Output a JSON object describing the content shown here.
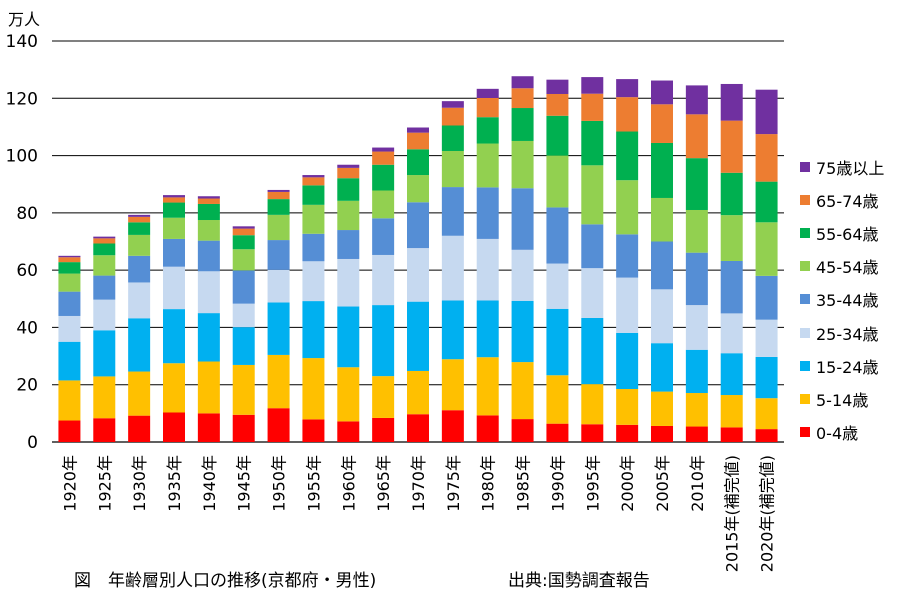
{
  "chart_data": {
    "type": "bar",
    "stacked": true,
    "ylabel": "万人",
    "ylim": [
      0,
      140
    ],
    "yticks": [
      0,
      20,
      40,
      60,
      80,
      100,
      120,
      140
    ],
    "grid": true,
    "legend_position": "right",
    "categories": [
      "1920年",
      "1925年",
      "1930年",
      "1935年",
      "1940年",
      "1945年",
      "1950年",
      "1955年",
      "1960年",
      "1965年",
      "1970年",
      "1975年",
      "1980年",
      "1985年",
      "1990年",
      "1995年",
      "2000年",
      "2005年",
      "2010年",
      "2015年(補完値)",
      "2020年(補完値)"
    ],
    "series": [
      {
        "name": "0-4歳",
        "color": "#ff0000",
        "values": [
          7.5,
          8.3,
          9.2,
          10.3,
          10.0,
          9.5,
          11.8,
          7.9,
          7.2,
          8.4,
          9.7,
          11.1,
          9.3,
          8.0,
          6.4,
          6.2,
          6.0,
          5.6,
          5.4,
          5.1,
          4.5
        ]
      },
      {
        "name": "5-14歳",
        "color": "#ffc000",
        "values": [
          14.0,
          14.6,
          15.4,
          17.2,
          18.1,
          17.4,
          18.6,
          21.4,
          18.9,
          14.6,
          15.1,
          17.8,
          20.3,
          19.9,
          16.9,
          14.0,
          12.5,
          12.0,
          11.7,
          11.3,
          10.8
        ]
      },
      {
        "name": "15-24歳",
        "color": "#00b0f0",
        "values": [
          13.5,
          16.1,
          18.6,
          18.9,
          16.9,
          13.2,
          18.3,
          19.9,
          21.2,
          24.8,
          24.2,
          20.5,
          19.8,
          21.4,
          23.2,
          23.1,
          19.6,
          16.9,
          15.1,
          14.6,
          14.4
        ]
      },
      {
        "name": "25-34歳",
        "color": "#c6d9f0",
        "values": [
          9.0,
          10.7,
          12.5,
          14.8,
          14.6,
          8.2,
          11.4,
          13.9,
          16.6,
          17.5,
          18.7,
          22.6,
          21.5,
          17.8,
          15.8,
          17.4,
          19.3,
          18.8,
          15.6,
          13.9,
          13.0
        ]
      },
      {
        "name": "35-44歳",
        "color": "#558ed5",
        "values": [
          8.5,
          8.4,
          9.3,
          9.7,
          10.7,
          11.6,
          10.4,
          9.6,
          10.1,
          12.8,
          16.0,
          17.0,
          18.0,
          21.5,
          19.6,
          15.3,
          15.1,
          16.7,
          18.3,
          18.3,
          15.3
        ]
      },
      {
        "name": "45-54歳",
        "color": "#92d050",
        "values": [
          6.3,
          7.1,
          7.3,
          7.4,
          7.2,
          7.4,
          8.8,
          10.1,
          10.2,
          9.7,
          9.5,
          12.6,
          15.3,
          16.5,
          18.1,
          20.6,
          18.9,
          15.2,
          14.9,
          16.0,
          18.7
        ]
      },
      {
        "name": "55-64歳",
        "color": "#00b050",
        "values": [
          4.0,
          4.1,
          4.4,
          5.3,
          5.6,
          4.9,
          5.5,
          6.8,
          7.9,
          9.0,
          9.0,
          8.9,
          9.2,
          11.5,
          13.9,
          15.5,
          17.0,
          19.2,
          18.1,
          14.8,
          14.2
        ]
      },
      {
        "name": "65-74歳",
        "color": "#ed7d31",
        "values": [
          1.7,
          1.8,
          1.9,
          1.8,
          1.9,
          2.3,
          2.5,
          2.8,
          3.6,
          4.6,
          5.8,
          6.2,
          6.7,
          6.9,
          7.6,
          9.5,
          12.0,
          13.5,
          15.3,
          18.2,
          16.6
        ]
      },
      {
        "name": "75歳以上",
        "color": "#7030a0",
        "values": [
          0.5,
          0.6,
          0.7,
          0.8,
          0.8,
          0.8,
          0.7,
          0.8,
          1.1,
          1.4,
          1.8,
          2.3,
          3.2,
          4.2,
          5.0,
          5.8,
          6.3,
          8.3,
          10.1,
          12.8,
          15.5
        ]
      }
    ]
  },
  "caption": "図　年齢層別人口の推移(京都府・男性)",
  "source": "出典:国勢調査報告"
}
